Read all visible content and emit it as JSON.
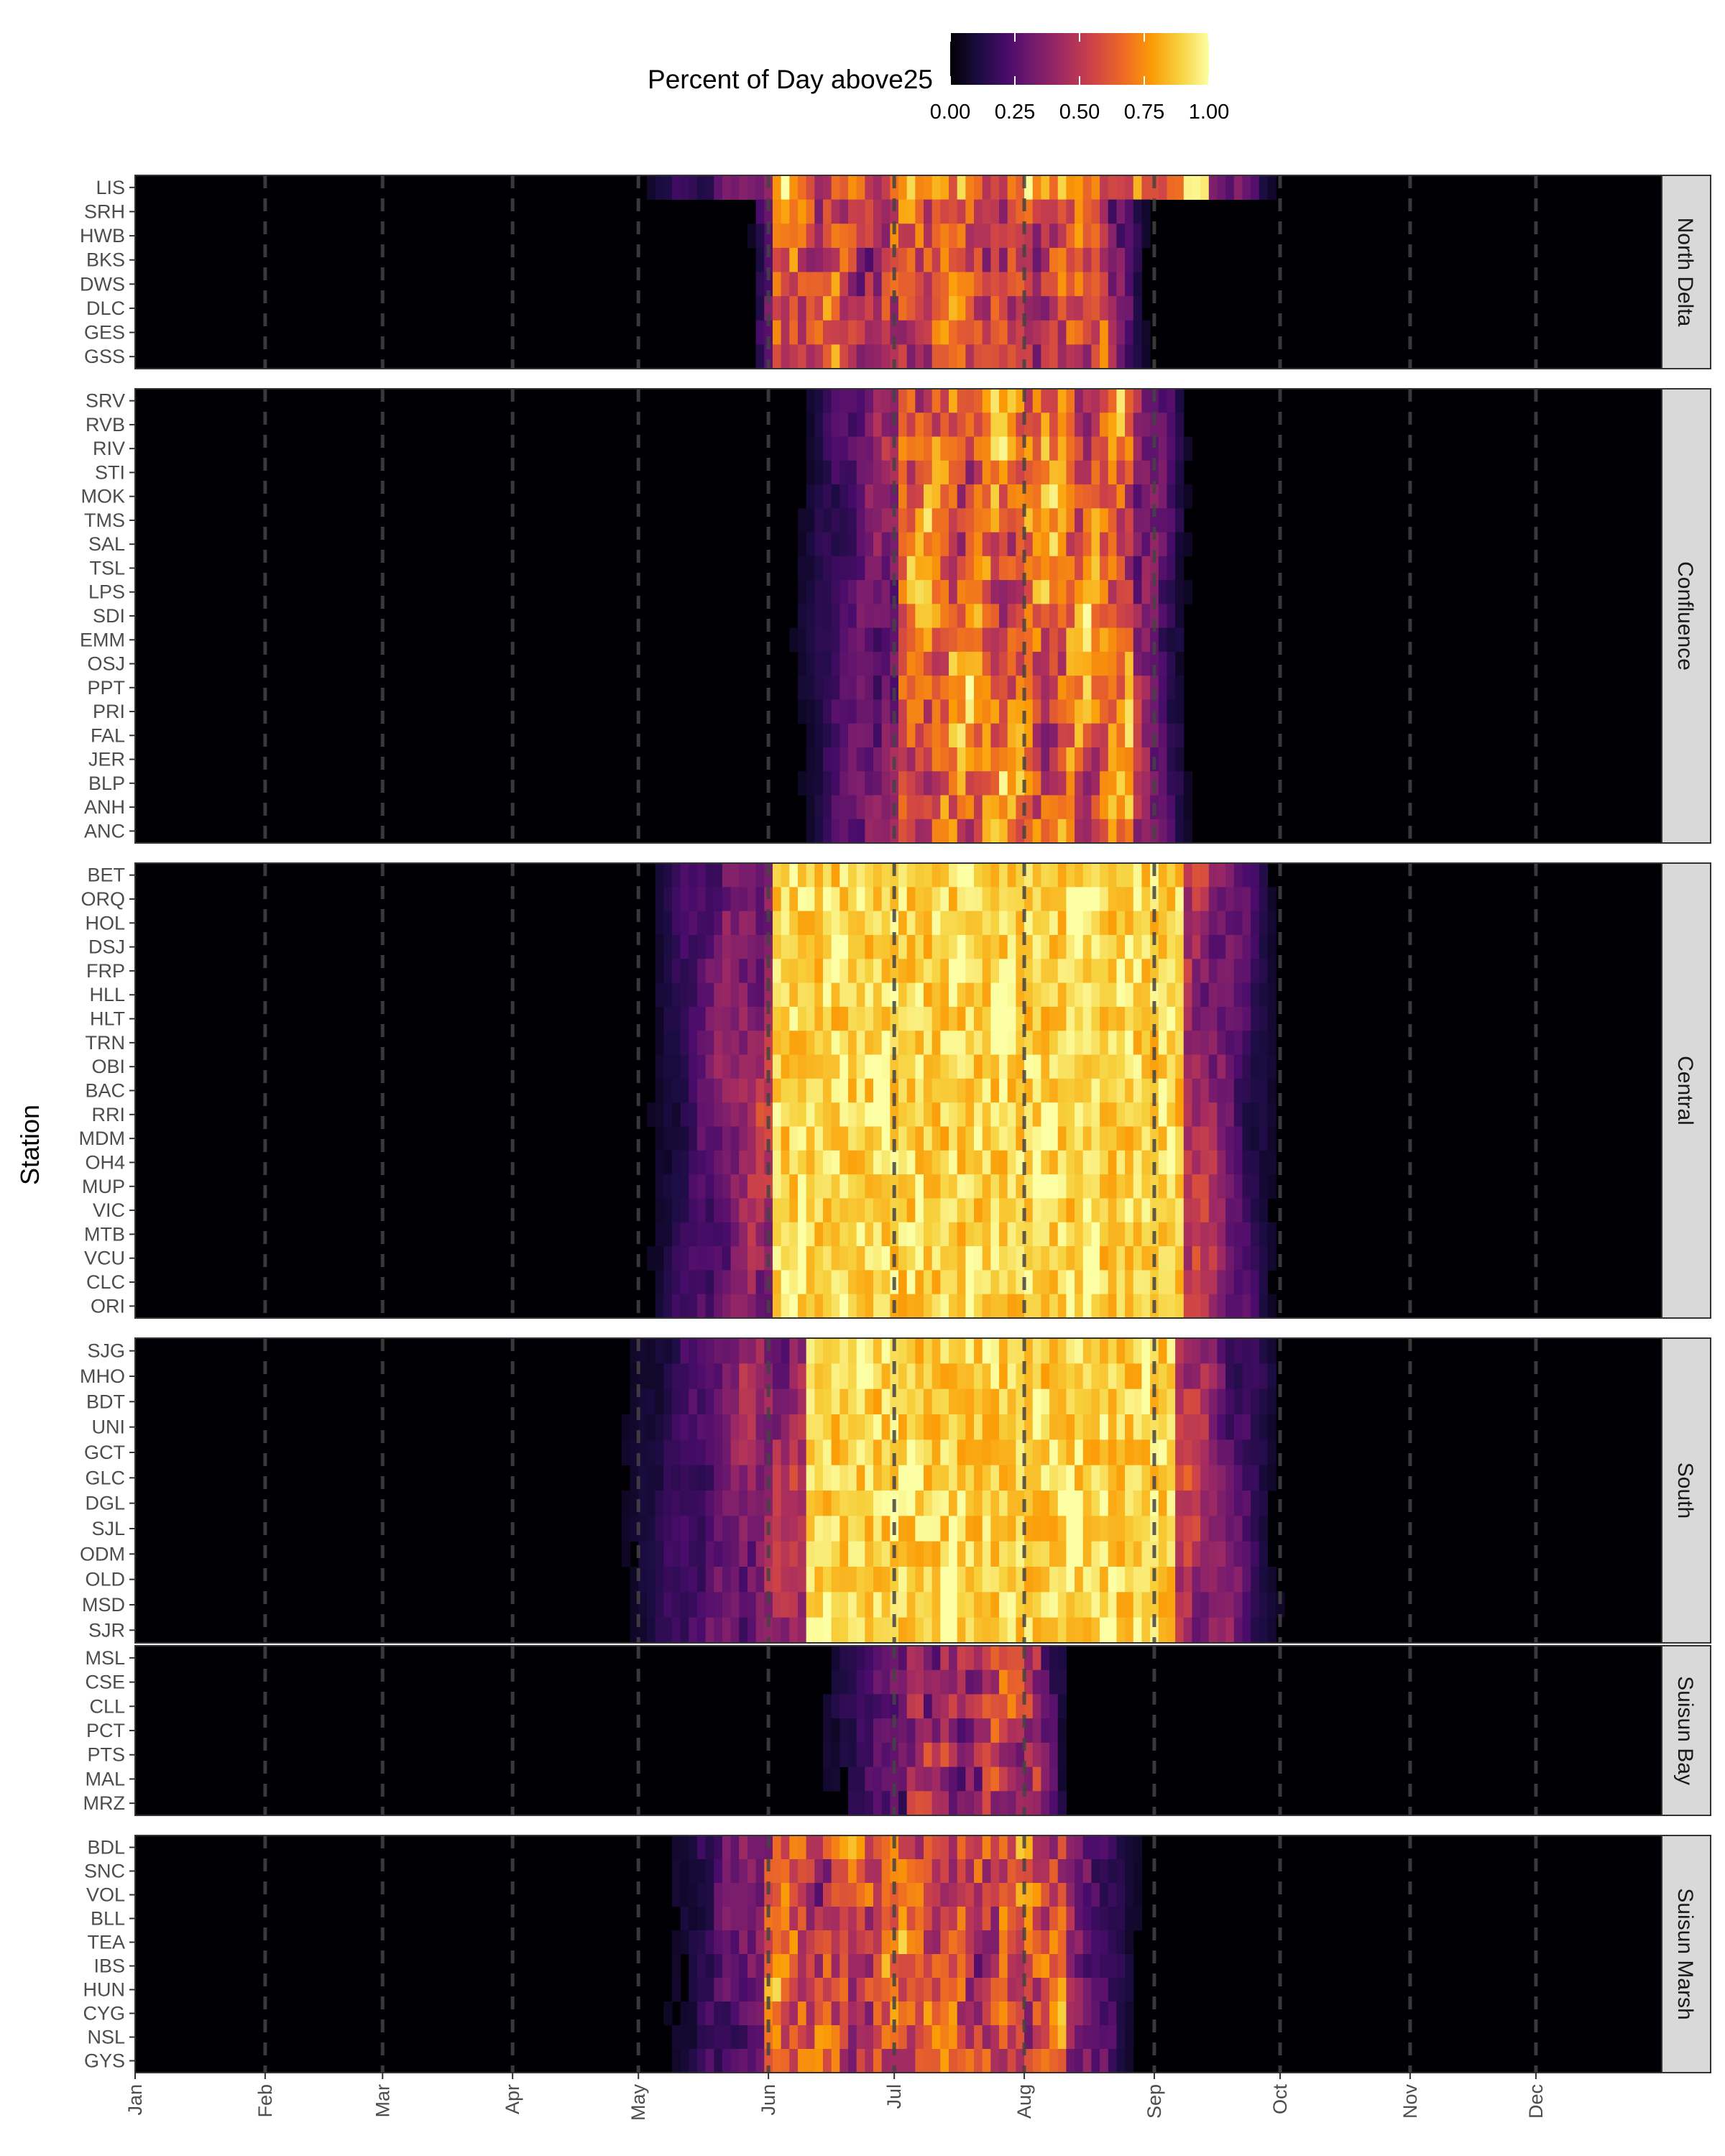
{
  "chart_data": {
    "type": "heatmap",
    "legend": {
      "title": "Percent of Day above25",
      "ticks": [
        "0.00",
        "0.25",
        "0.50",
        "0.75",
        "1.00"
      ],
      "tick_values": [
        0,
        0.25,
        0.5,
        0.75,
        1
      ],
      "placement": "top",
      "palette": "inferno",
      "colors": [
        "#000004",
        "#1b0c41",
        "#4a0c6b",
        "#781c6d",
        "#a52c60",
        "#cf4446",
        "#ed6925",
        "#fb9b06",
        "#f7d13d",
        "#fcffa4"
      ]
    },
    "ylabel": "Station",
    "xlabel": "",
    "x_ticks": [
      "Jan",
      "Feb",
      "Mar",
      "Apr",
      "May",
      "Jun",
      "Jul",
      "Aug",
      "Sep",
      "Oct",
      "Nov",
      "Dec"
    ],
    "x_tick_days": [
      1,
      32,
      60,
      91,
      121,
      152,
      182,
      213,
      244,
      274,
      305,
      335
    ],
    "xlim_days": [
      1,
      365
    ],
    "reference_lines": "dashed vertical line at the first day of each month",
    "facets": [
      {
        "name": "North Delta",
        "stations": [
          "LIS",
          "SRH",
          "HWB",
          "BKS",
          "DWS",
          "DLC",
          "GES",
          "GSS"
        ]
      },
      {
        "name": "Confluence",
        "stations": [
          "SRV",
          "RVB",
          "RIV",
          "STI",
          "MOK",
          "TMS",
          "SAL",
          "TSL",
          "LPS",
          "SDI",
          "EMM",
          "OSJ",
          "PPT",
          "PRI",
          "FAL",
          "JER",
          "BLP",
          "ANH",
          "ANC"
        ]
      },
      {
        "name": "Central",
        "stations": [
          "BET",
          "ORQ",
          "HOL",
          "DSJ",
          "FRP",
          "HLL",
          "HLT",
          "TRN",
          "OBI",
          "BAC",
          "RRI",
          "MDM",
          "OH4",
          "MUP",
          "VIC",
          "MTB",
          "VCU",
          "CLC",
          "ORI"
        ]
      },
      {
        "name": "South",
        "stations": [
          "SJG",
          "MHO",
          "BDT",
          "UNI",
          "GCT",
          "GLC",
          "DGL",
          "SJL",
          "ODM",
          "OLD",
          "MSD",
          "SJR"
        ]
      },
      {
        "name": "Suisun Bay",
        "stations": [
          "MSL",
          "CSE",
          "CLL",
          "PCT",
          "PTS",
          "MAL",
          "MRZ"
        ]
      },
      {
        "name": "Suisun Marsh",
        "stations": [
          "BDL",
          "SNC",
          "VOL",
          "BLL",
          "TEA",
          "IBS",
          "HUN",
          "CYG",
          "NSL",
          "GYS"
        ]
      }
    ],
    "season_profiles": {
      "note": "Approximate percent of day above 25 (0-1) by day-of-year, summarised per station; values read from the color scale",
      "LIS": {
        "start": 111,
        "end": 278,
        "peak": 0.92,
        "core": [
          153,
          255
        ]
      },
      "North Delta": {
        "start": 145,
        "end": 245,
        "peak": 0.7,
        "core": [
          152,
          232
        ]
      },
      "Confluence": {
        "start": 150,
        "end": 255,
        "peak": 0.85,
        "core": [
          183,
          238
        ]
      },
      "Central": {
        "start": 115,
        "end": 278,
        "peak": 1.0,
        "core": [
          152,
          250
        ]
      },
      "South": {
        "start": 105,
        "end": 280,
        "peak": 1.0,
        "core": [
          160,
          248
        ]
      },
      "Suisun Bay": {
        "start": 155,
        "end": 225,
        "peak": 0.6,
        "core": [
          185,
          215
        ]
      },
      "Suisun Marsh": {
        "start": 120,
        "end": 245,
        "peak": 0.75,
        "core": [
          150,
          222
        ]
      }
    }
  }
}
